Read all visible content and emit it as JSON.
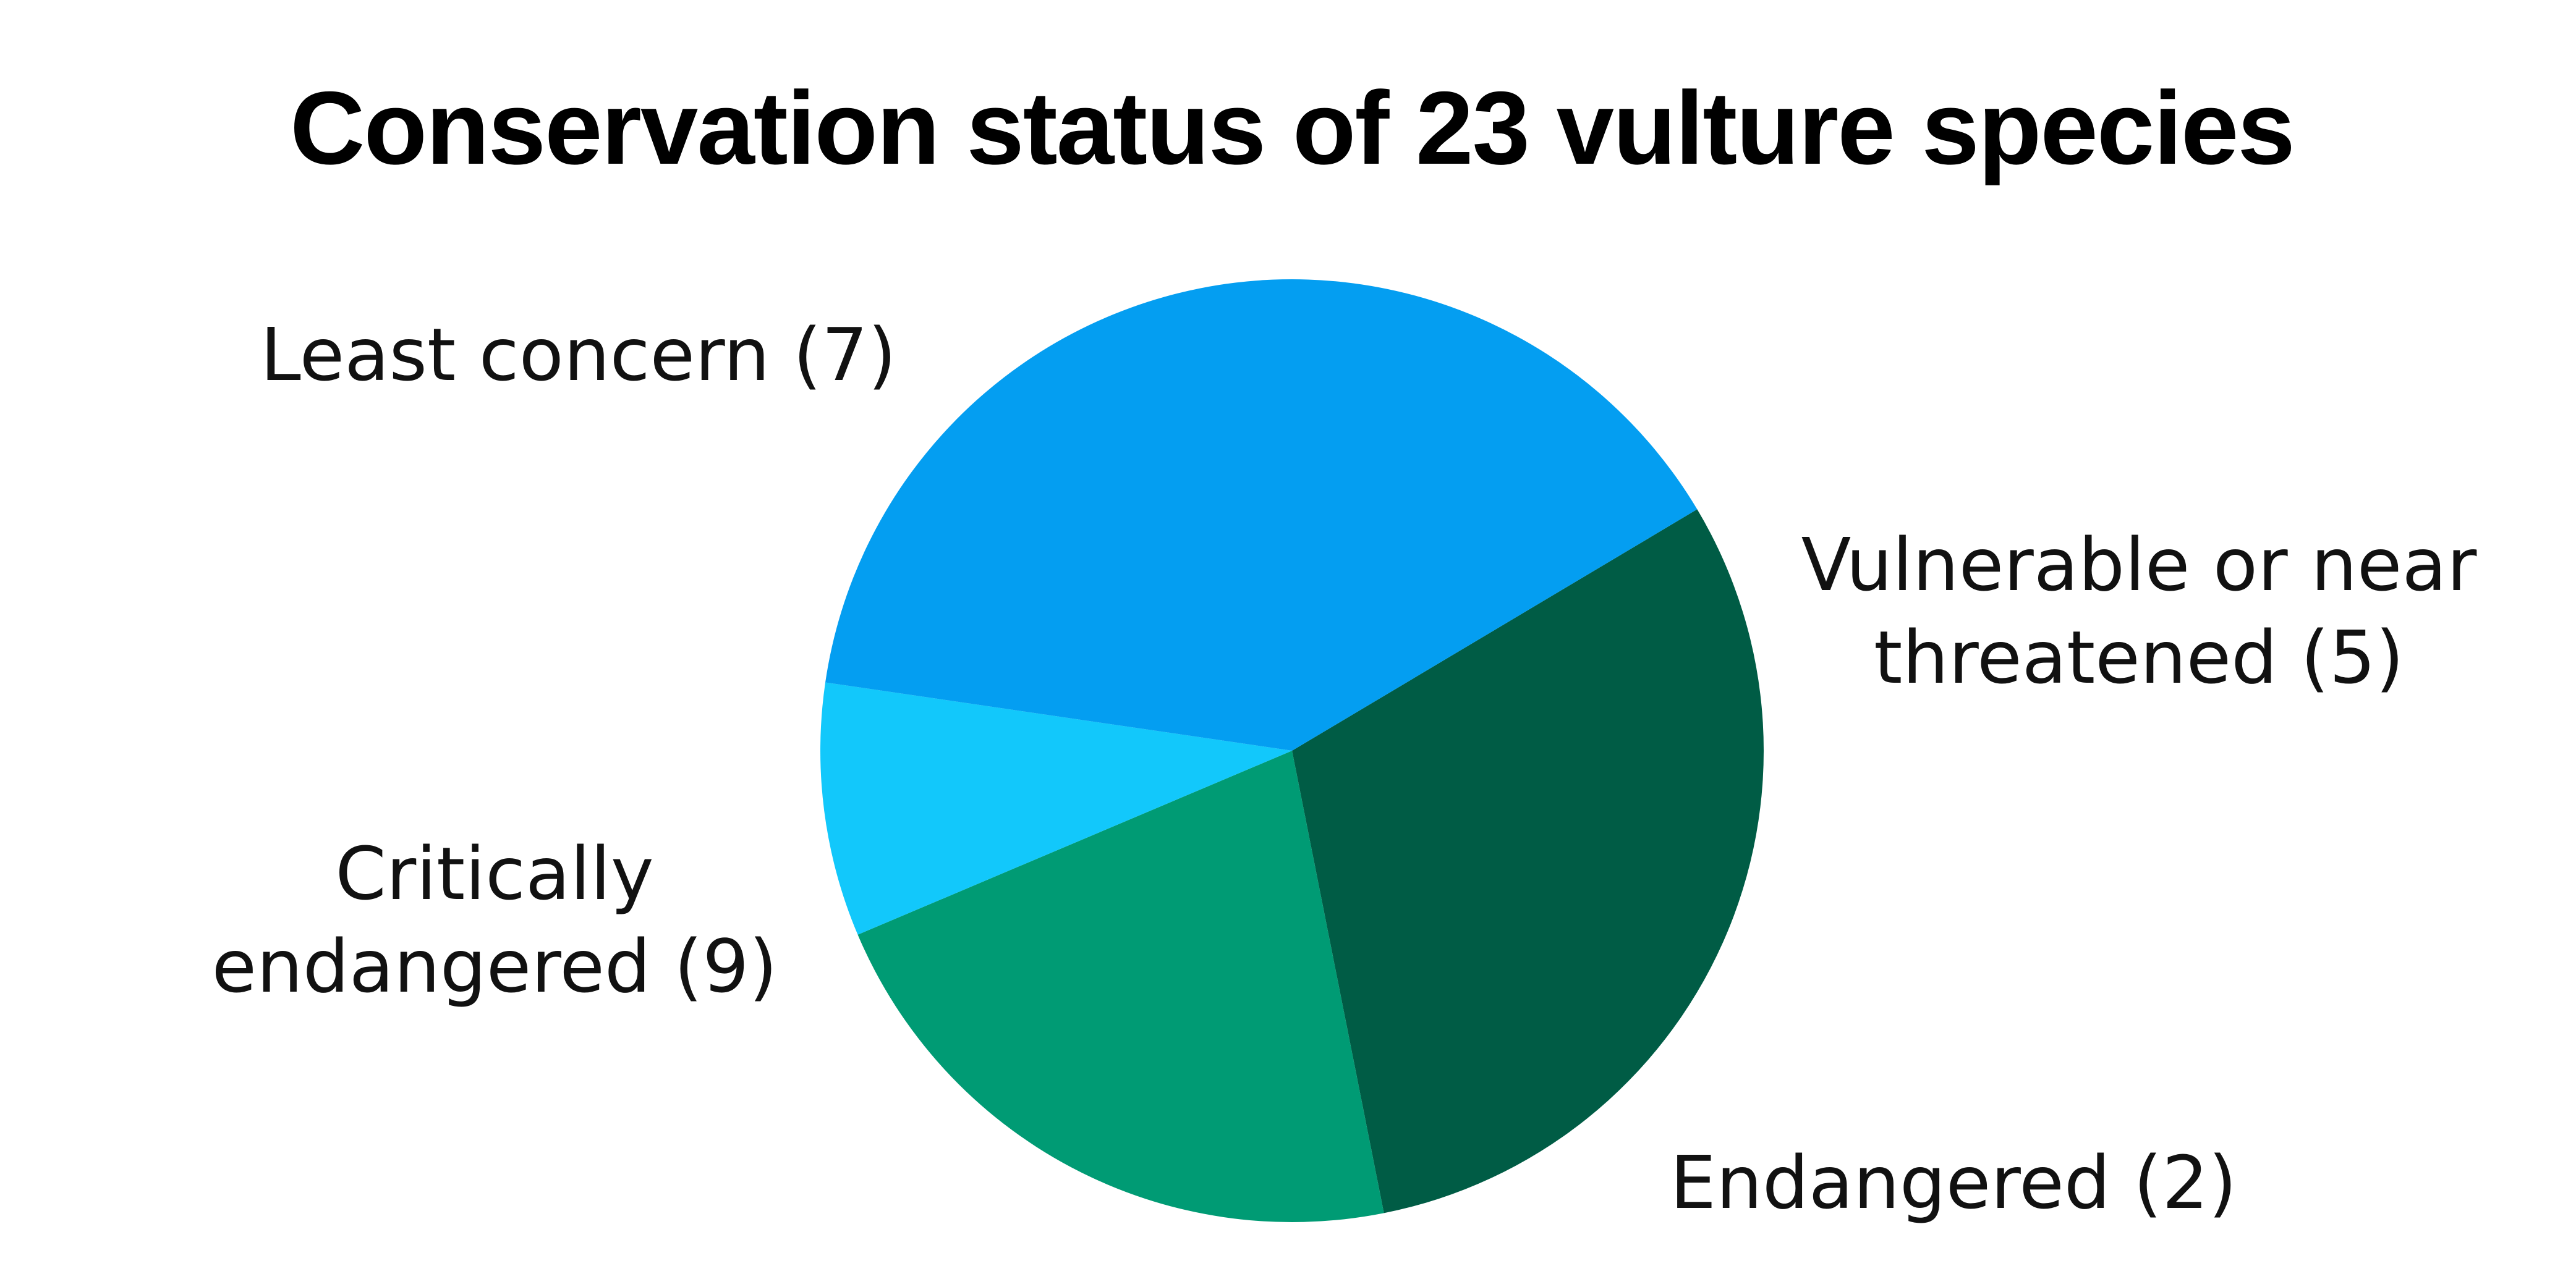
{
  "chart_data": {
    "type": "pie",
    "title": "Conservation status of 23 vulture species",
    "total": 23,
    "slices": [
      {
        "name": "Least concern",
        "value": 7,
        "label_lines": [
          "Least concern (7)"
        ],
        "color": "#005c45"
      },
      {
        "name": "Vulnerable or near threatened",
        "value": 5,
        "label_lines": [
          "Vulnerable or near",
          "threatened (5)"
        ],
        "color": "#009b74"
      },
      {
        "name": "Endangered",
        "value": 2,
        "label_lines": [
          "Endangered (2)"
        ],
        "color": "#12c8fb"
      },
      {
        "name": "Critically endangered",
        "value": 9,
        "label_lines": [
          "Critically",
          "endangered (9)"
        ],
        "color": "#049ef1"
      }
    ]
  }
}
